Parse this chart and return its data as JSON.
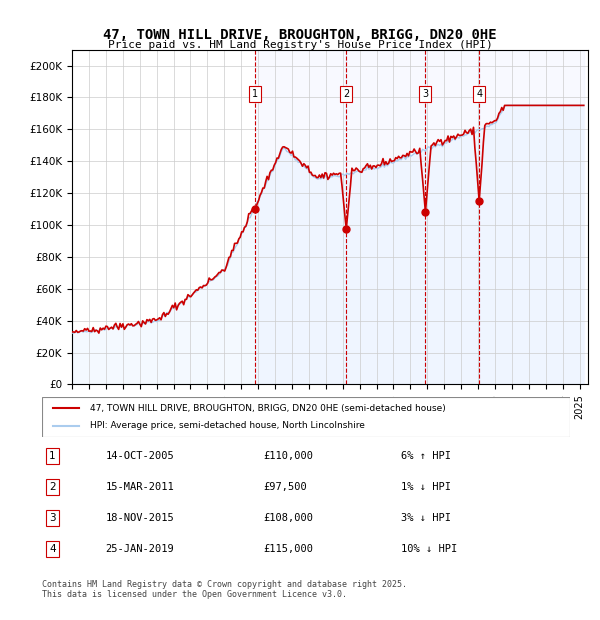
{
  "title": "47, TOWN HILL DRIVE, BROUGHTON, BRIGG, DN20 0HE",
  "subtitle": "Price paid vs. HM Land Registry's House Price Index (HPI)",
  "xlim": [
    1995.0,
    2025.5
  ],
  "ylim": [
    0,
    210000
  ],
  "yticks": [
    0,
    20000,
    40000,
    60000,
    80000,
    100000,
    120000,
    140000,
    160000,
    180000,
    200000
  ],
  "ytick_labels": [
    "£0",
    "£20K",
    "£40K",
    "£60K",
    "£80K",
    "£100K",
    "£120K",
    "£140K",
    "£160K",
    "£180K",
    "£200K"
  ],
  "sale_dates": [
    2005.79,
    2011.21,
    2015.89,
    2019.07
  ],
  "sale_prices": [
    110000,
    97500,
    108000,
    115000
  ],
  "sale_labels": [
    "1",
    "2",
    "3",
    "4"
  ],
  "legend_entries": [
    "47, TOWN HILL DRIVE, BROUGHTON, BRIGG, DN20 0HE (semi-detached house)",
    "HPI: Average price, semi-detached house, North Lincolnshire"
  ],
  "legend_colors": [
    "#cc0000",
    "#aaccee"
  ],
  "table_rows": [
    [
      "1",
      "14-OCT-2005",
      "£110,000",
      "6% ↑ HPI"
    ],
    [
      "2",
      "15-MAR-2011",
      "£97,500",
      "1% ↓ HPI"
    ],
    [
      "3",
      "18-NOV-2015",
      "£108,000",
      "3% ↓ HPI"
    ],
    [
      "4",
      "25-JAN-2019",
      "£115,000",
      "10% ↓ HPI"
    ]
  ],
  "footnote": "Contains HM Land Registry data © Crown copyright and database right 2025.\nThis data is licensed under the Open Government Licence v3.0.",
  "price_line_color": "#cc0000",
  "hpi_line_color": "#aaccee",
  "hpi_fill_color": "#ddeeff",
  "vline_color": "#cc0000",
  "grid_color": "#cccccc",
  "bg_color": "#f0f4ff"
}
